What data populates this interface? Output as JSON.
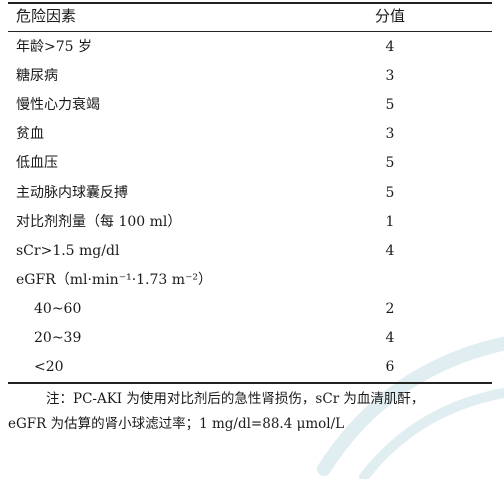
{
  "table": {
    "header": {
      "factor": "危险因素",
      "score": "分值"
    },
    "rows": [
      {
        "factor": "年龄>75 岁",
        "score": "4",
        "indent": false
      },
      {
        "factor": "糖尿病",
        "score": "3",
        "indent": false
      },
      {
        "factor": "慢性心力衰竭",
        "score": "5",
        "indent": false
      },
      {
        "factor": "贫血",
        "score": "3",
        "indent": false
      },
      {
        "factor": "低血压",
        "score": "5",
        "indent": false
      },
      {
        "factor": "主动脉内球囊反搏",
        "score": "5",
        "indent": false
      },
      {
        "factor": "对比剂剂量（每 100 ml）",
        "score": "1",
        "indent": false
      },
      {
        "factor": "sCr>1.5 mg/dl",
        "score": "4",
        "indent": false
      },
      {
        "factor": "eGFR（ml·min⁻¹·1.73 m⁻²）",
        "score": "",
        "indent": false
      },
      {
        "factor": "40~60",
        "score": "2",
        "indent": true
      },
      {
        "factor": "20~39",
        "score": "4",
        "indent": true
      },
      {
        "factor": "<20",
        "score": "6",
        "indent": true
      }
    ]
  },
  "note": {
    "line1": "注：PC-AKI 为使用对比剂后的急性肾损伤，sCr 为血清肌酐，",
    "line2": "eGFR 为估算的肾小球滤过率；1 mg/dl=88.4 μmol/L"
  },
  "colors": {
    "text": "#1a1a1a",
    "rule": "#222222",
    "watermark": "#5aa7b8"
  }
}
